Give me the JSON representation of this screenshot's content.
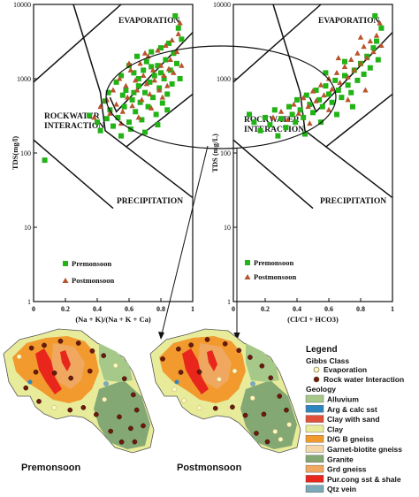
{
  "chart_data": [
    {
      "type": "scatter",
      "xlabel": "(Na + K)/(Na + K + Ca)",
      "ylabel": "TDS(mg/l)",
      "xlim": [
        0,
        1
      ],
      "ylim": [
        1,
        10000
      ],
      "ylog": true,
      "xticks": [
        "0",
        "0.2",
        "0.4",
        "0.6",
        "0.8",
        "1"
      ],
      "yticks": [
        "1",
        "10",
        "100",
        "1000",
        "10000"
      ],
      "zone_labels": {
        "evaporation": "EVAPORATION",
        "rock1": "ROCKWATER",
        "rock2": "INTERACTION",
        "precipitation": "PRECIPITATION"
      },
      "legend": "bottom-left",
      "series": [
        {
          "name": "Premonsoon",
          "marker": "square",
          "color": "#22b316",
          "points": [
            [
              0.07,
              80
            ],
            [
              0.35,
              320
            ],
            [
              0.4,
              260
            ],
            [
              0.42,
              200
            ],
            [
              0.45,
              500
            ],
            [
              0.47,
              650
            ],
            [
              0.48,
              380
            ],
            [
              0.5,
              230
            ],
            [
              0.52,
              900
            ],
            [
              0.53,
              300
            ],
            [
              0.55,
              1100
            ],
            [
              0.55,
              170
            ],
            [
              0.57,
              420
            ],
            [
              0.58,
              700
            ],
            [
              0.6,
              1500
            ],
            [
              0.6,
              260
            ],
            [
              0.62,
              520
            ],
            [
              0.63,
              1200
            ],
            [
              0.64,
              360
            ],
            [
              0.65,
              2000
            ],
            [
              0.66,
              800
            ],
            [
              0.67,
              480
            ],
            [
              0.68,
              280
            ],
            [
              0.69,
              1300
            ],
            [
              0.7,
              650
            ],
            [
              0.71,
              1700
            ],
            [
              0.72,
              420
            ],
            [
              0.73,
              900
            ],
            [
              0.74,
              2300
            ],
            [
              0.75,
              560
            ],
            [
              0.76,
              1100
            ],
            [
              0.77,
              330
            ],
            [
              0.78,
              1500
            ],
            [
              0.79,
              750
            ],
            [
              0.8,
              2600
            ],
            [
              0.81,
              470
            ],
            [
              0.82,
              1000
            ],
            [
              0.83,
              1800
            ],
            [
              0.84,
              620
            ],
            [
              0.85,
              3000
            ],
            [
              0.86,
              1300
            ],
            [
              0.87,
              850
            ],
            [
              0.88,
              2200
            ],
            [
              0.89,
              7000
            ],
            [
              0.9,
              1600
            ],
            [
              0.91,
              4800
            ],
            [
              0.92,
              1000
            ],
            [
              0.93,
              3400
            ],
            [
              0.46,
              290
            ],
            [
              0.61,
              210
            ],
            [
              0.7,
              190
            ],
            [
              0.78,
              240
            ],
            [
              0.84,
              380
            ],
            [
              0.56,
              600
            ],
            [
              0.66,
              1000
            ],
            [
              0.74,
              1450
            ],
            [
              0.63,
              650
            ],
            [
              0.8,
              1200
            ]
          ]
        },
        {
          "name": "Postmonsoon",
          "marker": "triangle",
          "color": "#b8542c",
          "points": [
            [
              0.38,
              300
            ],
            [
              0.42,
              420
            ],
            [
              0.46,
              520
            ],
            [
              0.48,
              340
            ],
            [
              0.5,
              700
            ],
            [
              0.52,
              450
            ],
            [
              0.54,
              1000
            ],
            [
              0.56,
              360
            ],
            [
              0.58,
              800
            ],
            [
              0.59,
              560
            ],
            [
              0.61,
              1300
            ],
            [
              0.62,
              430
            ],
            [
              0.64,
              950
            ],
            [
              0.65,
              700
            ],
            [
              0.67,
              1600
            ],
            [
              0.68,
              520
            ],
            [
              0.69,
              1100
            ],
            [
              0.71,
              850
            ],
            [
              0.72,
              2000
            ],
            [
              0.73,
              620
            ],
            [
              0.75,
              1300
            ],
            [
              0.76,
              950
            ],
            [
              0.78,
              2400
            ],
            [
              0.79,
              700
            ],
            [
              0.8,
              1500
            ],
            [
              0.82,
              1100
            ],
            [
              0.83,
              2800
            ],
            [
              0.84,
              800
            ],
            [
              0.86,
              1800
            ],
            [
              0.87,
              3300
            ],
            [
              0.88,
              1200
            ],
            [
              0.9,
              2300
            ],
            [
              0.91,
              4000
            ],
            [
              0.92,
              5600
            ],
            [
              0.93,
              1500
            ],
            [
              0.55,
              250
            ],
            [
              0.66,
              300
            ],
            [
              0.74,
              400
            ],
            [
              0.81,
              560
            ],
            [
              0.6,
              1600
            ],
            [
              0.7,
              2200
            ],
            [
              0.85,
              1350
            ]
          ]
        }
      ]
    },
    {
      "type": "scatter",
      "xlabel": "(Cl/Cl + HCO3)",
      "ylabel": "TDS (mg/L)",
      "xlim": [
        0,
        1
      ],
      "ylim": [
        1,
        10000
      ],
      "ylog": true,
      "xticks": [
        "0",
        "0.2",
        "0.4",
        "0.6",
        "0.8",
        "1"
      ],
      "yticks": [
        "1",
        "10",
        "100",
        "1000",
        "10000"
      ],
      "zone_labels": {
        "evaporation": "EVAPORATION",
        "rock1": "ROCKWATER",
        "rock2": "INTERACTION",
        "precipitation": "PRECIPITATION"
      },
      "legend": "bottom-left",
      "series": [
        {
          "name": "Premonsoon",
          "marker": "square",
          "color": "#22b316",
          "points": [
            [
              0.1,
              330
            ],
            [
              0.13,
              260
            ],
            [
              0.17,
              200
            ],
            [
              0.2,
              300
            ],
            [
              0.23,
              240
            ],
            [
              0.26,
              380
            ],
            [
              0.28,
              170
            ],
            [
              0.3,
              290
            ],
            [
              0.33,
              220
            ],
            [
              0.35,
              420
            ],
            [
              0.37,
              330
            ],
            [
              0.39,
              260
            ],
            [
              0.4,
              520
            ],
            [
              0.42,
              380
            ],
            [
              0.44,
              300
            ],
            [
              0.46,
              600
            ],
            [
              0.48,
              450
            ],
            [
              0.5,
              350
            ],
            [
              0.52,
              700
            ],
            [
              0.54,
              520
            ],
            [
              0.56,
              420
            ],
            [
              0.58,
              800
            ],
            [
              0.6,
              620
            ],
            [
              0.62,
              480
            ],
            [
              0.64,
              950
            ],
            [
              0.66,
              700
            ],
            [
              0.68,
              560
            ],
            [
              0.7,
              1100
            ],
            [
              0.72,
              820
            ],
            [
              0.74,
              650
            ],
            [
              0.76,
              1300
            ],
            [
              0.78,
              950
            ],
            [
              0.8,
              1600
            ],
            [
              0.82,
              1150
            ],
            [
              0.84,
              2000
            ],
            [
              0.86,
              1400
            ],
            [
              0.88,
              2600
            ],
            [
              0.89,
              7000
            ],
            [
              0.9,
              3200
            ],
            [
              0.91,
              1800
            ],
            [
              0.93,
              4800
            ],
            [
              0.45,
              180
            ],
            [
              0.55,
              260
            ],
            [
              0.65,
              330
            ],
            [
              0.75,
              420
            ],
            [
              0.58,
              1200
            ],
            [
              0.7,
              1700
            ]
          ]
        },
        {
          "name": "Postmonsoon",
          "marker": "triangle",
          "color": "#b8542c",
          "points": [
            [
              0.25,
              300
            ],
            [
              0.3,
              360
            ],
            [
              0.34,
              280
            ],
            [
              0.38,
              450
            ],
            [
              0.41,
              340
            ],
            [
              0.44,
              550
            ],
            [
              0.47,
              420
            ],
            [
              0.5,
              680
            ],
            [
              0.52,
              500
            ],
            [
              0.55,
              820
            ],
            [
              0.57,
              600
            ],
            [
              0.6,
              1000
            ],
            [
              0.62,
              720
            ],
            [
              0.65,
              1200
            ],
            [
              0.67,
              880
            ],
            [
              0.7,
              1450
            ],
            [
              0.72,
              1050
            ],
            [
              0.74,
              1800
            ],
            [
              0.76,
              1300
            ],
            [
              0.78,
              2200
            ],
            [
              0.8,
              1600
            ],
            [
              0.82,
              2700
            ],
            [
              0.84,
              1900
            ],
            [
              0.86,
              3200
            ],
            [
              0.88,
              2300
            ],
            [
              0.9,
              3800
            ],
            [
              0.92,
              5600
            ],
            [
              0.93,
              2800
            ],
            [
              0.48,
              250
            ],
            [
              0.6,
              380
            ],
            [
              0.72,
              520
            ],
            [
              0.83,
              700
            ],
            [
              0.66,
              1900
            ],
            [
              0.8,
              3600
            ]
          ]
        }
      ]
    }
  ],
  "maps": {
    "left_title": "Premonsoon",
    "right_title": "Postmonsoon",
    "legend_title": "Legend",
    "gibbs_title": "Gibbs Class",
    "gibbs": [
      {
        "label": "Evaporation",
        "color": "#fff7c0"
      },
      {
        "label": "Rock water Interaction",
        "color": "#6b1a0d"
      }
    ],
    "geology_title": "Geology",
    "geology": [
      {
        "label": "Alluvium",
        "color": "#a6c98a"
      },
      {
        "label": "Arg & calc sst",
        "color": "#2e86c1"
      },
      {
        "label": "Clay with sand",
        "color": "#e0503a"
      },
      {
        "label": "Clay",
        "color": "#e8ec9a"
      },
      {
        "label": "D/G B gneiss",
        "color": "#f29a2e"
      },
      {
        "label": "Garnet-biotite gneiss",
        "color": "#f4d7a8"
      },
      {
        "label": "Granite",
        "color": "#84a874"
      },
      {
        "label": "Grd gneiss",
        "color": "#f0a860"
      },
      {
        "label": "Pur.cong sst & shale",
        "color": "#e8261c"
      },
      {
        "label": "Qtz vein",
        "color": "#7aa9b8"
      }
    ]
  }
}
